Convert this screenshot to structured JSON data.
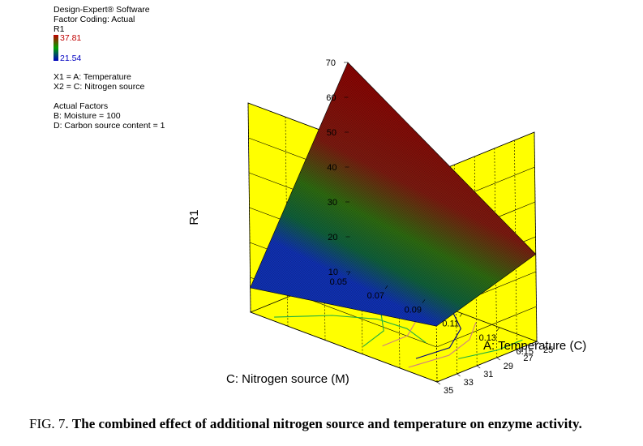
{
  "info": {
    "software": "Design-Expert® Software",
    "coding": "Factor Coding: Actual",
    "response": "R1",
    "colorbar_max": "37.81",
    "colorbar_min": "21.54",
    "x1": "X1 = A: Temperature",
    "x2": "X2 = C: Nitrogen source",
    "actual_factors_title": "Actual Factors",
    "factor_b": "B: Moisture = 100",
    "factor_d": "D: Carbon source content = 1"
  },
  "caption": {
    "prefix": "FIG. 7. ",
    "text": "The combined effect of additional nitrogen source and temperature on enzyme activity."
  },
  "chart_data": {
    "type": "surface3d",
    "zlabel": "R1",
    "xlabel": "C: Nitrogen source (M)",
    "ylabel": "A: Temperature (C)",
    "x_ticks": [
      "0.05",
      "0.07",
      "0.09",
      "0.11",
      "0.13",
      "0.15"
    ],
    "y_ticks": [
      "25",
      "27",
      "29",
      "31",
      "33",
      "35"
    ],
    "z_ticks": [
      "10",
      "20",
      "30",
      "40",
      "50",
      "60",
      "70"
    ],
    "xlim": [
      0.05,
      0.15
    ],
    "ylim": [
      25,
      35
    ],
    "zlim": [
      10,
      70
    ],
    "surface_corners": [
      {
        "nitrogen": 0.05,
        "temperature": 25,
        "R1": 70
      },
      {
        "nitrogen": 0.15,
        "temperature": 25,
        "R1": 35
      },
      {
        "nitrogen": 0.15,
        "temperature": 35,
        "R1": 26
      },
      {
        "nitrogen": 0.05,
        "temperature": 35,
        "R1": 17
      }
    ],
    "colors": {
      "floor": "#ffff00",
      "high": "#800000",
      "mid": "#006400",
      "low": "#0000c0",
      "grid": "#000000"
    }
  }
}
